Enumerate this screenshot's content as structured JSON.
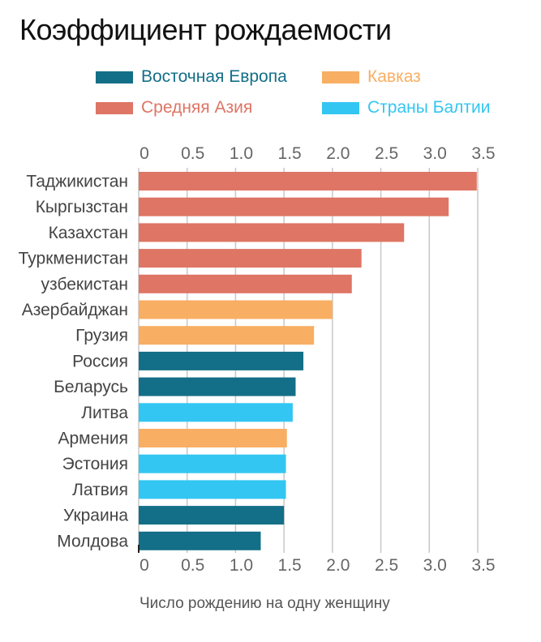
{
  "chart_data": {
    "type": "bar",
    "orientation": "horizontal",
    "title": "Коэффициент рождаемости",
    "xlabel": "Число рождению на одну женщину",
    "ylabel": "",
    "xlim": [
      0,
      3.5
    ],
    "ticks": [
      "0",
      "0.5",
      "1.0",
      "1.5",
      "2.0",
      "2.5",
      "3.0",
      "3.5"
    ],
    "tick_values": [
      0,
      0.5,
      1,
      1.5,
      2,
      2.5,
      3,
      3.5
    ],
    "grid": true,
    "legend": [
      {
        "name": "Восточная Европа",
        "color": "#136f87"
      },
      {
        "name": "Кавказ",
        "color": "#f8ae63"
      },
      {
        "name": "Средняя Азия",
        "color": "#de7565"
      },
      {
        "name": "Страны Балтии",
        "color": "#33c6f2"
      }
    ],
    "categories": [
      "Таджикистан",
      "Кыргызстан",
      "Казахстан",
      "Туркменистан",
      "узбекистан",
      "Азербайджан",
      "Грузия",
      "Россия",
      "Беларусь",
      "Литва",
      "Армения",
      "Эстония",
      "Латвия",
      "Украина",
      "Молдова"
    ],
    "values": [
      3.49,
      3.2,
      2.74,
      2.3,
      2.2,
      2.0,
      1.81,
      1.7,
      1.62,
      1.59,
      1.53,
      1.52,
      1.52,
      1.5,
      1.26
    ],
    "groups": [
      2,
      2,
      2,
      2,
      2,
      1,
      1,
      0,
      0,
      3,
      1,
      3,
      3,
      0,
      0
    ]
  }
}
